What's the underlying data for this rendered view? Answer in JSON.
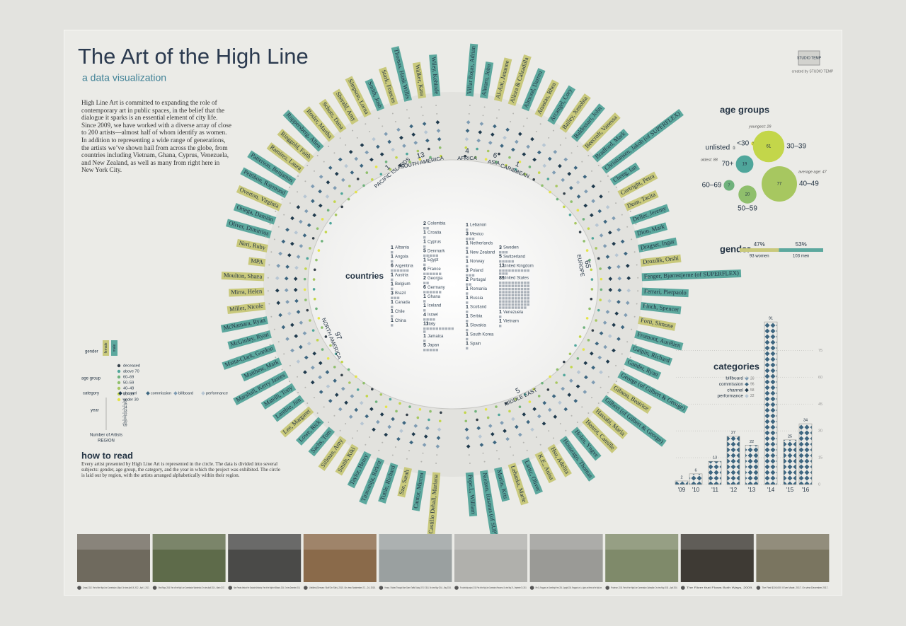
{
  "header": {
    "title": "The Art of the High Line",
    "subtitle": "a data visualization",
    "intro": "High Line Art is committed to expanding the role of contemporary art in public spaces, in the belief that the dialogue it sparks is an essential element of city life. Since 2009, we have worked with a diverse array of close to 200 artists—almost half of whom identify as women. In addition to representing a wide range of generations, the artists we’ve shown hail from across the globe, from countries including Vietnam, Ghana, Cyprus, Venezuela, and New Zealand, as well as many from right here in New York City."
  },
  "logo": {
    "name": "STUDIO TEMP",
    "credit": "created by STUDIO TEMP"
  },
  "legend": {
    "gender_label": "gender",
    "genders": [
      {
        "name": "female",
        "color": "#c9c97c"
      },
      {
        "name": "male",
        "color": "#5ca89e"
      }
    ],
    "age_label": "age group",
    "ages": [
      {
        "name": "deceased",
        "color": "#34404a"
      },
      {
        "name": "above 70",
        "color": "#4fa69b"
      },
      {
        "name": "60–69",
        "color": "#6fb27c"
      },
      {
        "name": "50–59",
        "color": "#8fbf6c"
      },
      {
        "name": "40–49",
        "color": "#a7c760"
      },
      {
        "name": "30–39",
        "color": "#c3d64a"
      },
      {
        "name": "under 30",
        "color": "#e4e44a"
      }
    ],
    "category_label": "category",
    "categories": [
      {
        "name": "channel",
        "color": "#1f3a4d"
      },
      {
        "name": "commission",
        "color": "#3d6680"
      },
      {
        "name": "billboard",
        "color": "#7f9cb3"
      },
      {
        "name": "performance",
        "color": "#b7c6d3"
      }
    ],
    "year_label": "year",
    "years": [
      "'16",
      "'15",
      "'14",
      "'13",
      "'12",
      "'11",
      "'10",
      "'09"
    ],
    "count_label": "Number of Artists",
    "region_label": "REGION"
  },
  "artists_right": [
    {
      "name": "Villar Rojas, Adrián",
      "gender": "male"
    },
    {
      "name": "Ahearn, John",
      "gender": "male"
    },
    {
      "name": "Al-Ani, Jananne",
      "gender": "female"
    },
    {
      "name": "Allora & Calzadilla",
      "gender": "female"
    },
    {
      "name": "Almond, Darren",
      "gender": "male"
    },
    {
      "name": "Anastas, Rhea",
      "gender": "female"
    },
    {
      "name": "Arcangel, Cory",
      "gender": "male"
    },
    {
      "name": "Bailey, Xenobia",
      "gender": "female"
    },
    {
      "name": "Baldessari, John",
      "gender": "male"
    },
    {
      "name": "Beecroft, Vanessa",
      "gender": "female"
    },
    {
      "name": "Bradford, Mark",
      "gender": "male"
    },
    {
      "name": "Christiansen, Jakob (of SUPERFLEX)",
      "gender": "male"
    },
    {
      "name": "Cheng, Ian",
      "gender": "male"
    },
    {
      "name": "Cortright, Petra",
      "gender": "female"
    },
    {
      "name": "Dean, Tacita",
      "gender": "female"
    },
    {
      "name": "Deller, Jeremy",
      "gender": "male"
    },
    {
      "name": "Dion, Mark",
      "gender": "male"
    },
    {
      "name": "Dragset, Ingar",
      "gender": "male"
    },
    {
      "name": "Drozdik, Orshi",
      "gender": "female"
    },
    {
      "name": "Fenger, Bjørnstjerne (of SUPERFLEX)",
      "gender": "male"
    },
    {
      "name": "Ferrari, Pierpaolo",
      "gender": "male"
    },
    {
      "name": "Finch, Spencer",
      "gender": "male"
    },
    {
      "name": "Forti, Simone",
      "gender": "female"
    },
    {
      "name": "Fromont, Aurélien",
      "gender": "male"
    },
    {
      "name": "Galpin, Richard",
      "gender": "male"
    },
    {
      "name": "Gander, Ryan",
      "gender": "male"
    },
    {
      "name": "George (of Gilbert & George)",
      "gender": "male"
    },
    {
      "name": "Gibson, Beatrice",
      "gender": "female"
    },
    {
      "name": "Gilbert (of Gilbert & George)",
      "gender": "male"
    },
    {
      "name": "Hassabi, Maria",
      "gender": "female"
    },
    {
      "name": "Henrot, Camille",
      "gender": "female"
    },
    {
      "name": "Holen, Yngve",
      "gender": "male"
    },
    {
      "name": "Houseago, Thomas",
      "gender": "male"
    },
    {
      "name": "Hsu, Adelita",
      "gender": "female"
    },
    {
      "name": "K.E., Anisa",
      "gender": "female"
    },
    {
      "name": "Lartic, Oliver",
      "gender": "male"
    },
    {
      "name": "Lehanka, Marie",
      "gender": "female"
    },
    {
      "name": "Martin, Kris",
      "gender": "male"
    },
    {
      "name": "Nielsen, Rasmus (of SUPERFLEX)",
      "gender": "male"
    },
    {
      "name": "Pope.L, William",
      "gender": "male"
    }
  ],
  "artists_left": [
    {
      "name": "Castillo Deball, Mariana",
      "gender": "female"
    },
    {
      "name": "Cantor, Mircea",
      "gender": "male"
    },
    {
      "name": "Sze, Sarah",
      "gender": "female"
    },
    {
      "name": "Tuttle, Richard",
      "gender": "male"
    },
    {
      "name": "Tiravanija, Rirkrit",
      "gender": "male"
    },
    {
      "name": "Taylor, Henry",
      "gender": "male"
    },
    {
      "name": "Smith, Kiki",
      "gender": "female"
    },
    {
      "name": "Sillman, Amy",
      "gender": "female"
    },
    {
      "name": "Sachs, Tom",
      "gender": "male"
    },
    {
      "name": "Lowe, Rick",
      "gender": "male"
    },
    {
      "name": "Lee, Margaret",
      "gender": "female"
    },
    {
      "name": "Lambie, Jim",
      "gender": "male"
    },
    {
      "name": "Matelli, Tony",
      "gender": "male"
    },
    {
      "name": "Marshall, Kerry James",
      "gender": "male"
    },
    {
      "name": "Matthew, Mark",
      "gender": "male"
    },
    {
      "name": "Matta-Clark, Gordon",
      "gender": "male"
    },
    {
      "name": "McGinley, Ryan",
      "gender": "male"
    },
    {
      "name": "McNamara, Ryan",
      "gender": "male"
    },
    {
      "name": "Miller, Nicole",
      "gender": "female"
    },
    {
      "name": "Mirra, Helen",
      "gender": "female"
    },
    {
      "name": "Moulton, Shana",
      "gender": "female"
    },
    {
      "name": "MPA",
      "gender": "female"
    },
    {
      "name": "Neri, Ruby",
      "gender": "female"
    },
    {
      "name": "Oliver, Dimitrios",
      "gender": "male"
    },
    {
      "name": "Ortega, Damián",
      "gender": "male"
    },
    {
      "name": "Overton, Virginia",
      "gender": "female"
    },
    {
      "name": "Pettibon, Raymond",
      "gender": "male"
    },
    {
      "name": "Patterson, Benjamin",
      "gender": "male"
    },
    {
      "name": "Ramirez, Laura",
      "gender": "female"
    },
    {
      "name": "Ringgold, Faith",
      "gender": "female"
    },
    {
      "name": "Ruppersberg, Allen",
      "gender": "male"
    },
    {
      "name": "Rosler, Martha",
      "gender": "female"
    },
    {
      "name": "Schutz, Dana",
      "gender": "female"
    },
    {
      "name": "Sherald, Amy",
      "gender": "female"
    },
    {
      "name": "Simpson, Lorna",
      "gender": "female"
    },
    {
      "name": "Smith, Josh",
      "gender": "male"
    },
    {
      "name": "Stark, Frances",
      "gender": "female"
    },
    {
      "name": "Thomas, Hank Willis",
      "gender": "male"
    },
    {
      "name": "Walker, Kara",
      "gender": "female"
    },
    {
      "name": "Wiley, Kehinde",
      "gender": "male"
    }
  ],
  "regions": [
    {
      "name": "PACIFIC ISLANDS",
      "count": 1
    },
    {
      "name": "SOUTH AMERICA",
      "count": 13
    },
    {
      "name": "AFRICA",
      "count": 4
    },
    {
      "name": "ASIA",
      "count": 6
    },
    {
      "name": "CARIBBEAN",
      "count": 1
    },
    {
      "name": "EUROPE",
      "count": 65
    },
    {
      "name": "MIDDLE EAST",
      "count": 5
    },
    {
      "name": "NORTH AMERICA",
      "count": 97
    }
  ],
  "countries": {
    "label": "countries",
    "columns": [
      [
        {
          "name": "Albania",
          "count": 1
        },
        {
          "name": "Angola",
          "count": 1
        },
        {
          "name": "Argentina",
          "count": 6
        },
        {
          "name": "Austria",
          "count": 1
        },
        {
          "name": "Belgium",
          "count": 1
        },
        {
          "name": "Brazil",
          "count": 3
        },
        {
          "name": "Canada",
          "count": 1
        },
        {
          "name": "Chile",
          "count": 1
        },
        {
          "name": "China",
          "count": 1
        }
      ],
      [
        {
          "name": "Colombia",
          "count": 2
        },
        {
          "name": "Croatia",
          "count": 1
        },
        {
          "name": "Cyprus",
          "count": 1
        },
        {
          "name": "Denmark",
          "count": 5
        },
        {
          "name": "Egypt",
          "count": 1
        },
        {
          "name": "France",
          "count": 6
        },
        {
          "name": "Georgia",
          "count": 2
        },
        {
          "name": "Germany",
          "count": 6
        },
        {
          "name": "Ghana",
          "count": 1
        },
        {
          "name": "Iceland",
          "count": 1
        },
        {
          "name": "Israel",
          "count": 4
        },
        {
          "name": "Italy",
          "count": 11
        },
        {
          "name": "Jamaica",
          "count": 1
        },
        {
          "name": "Japan",
          "count": 5
        }
      ],
      [
        {
          "name": "Lebanon",
          "count": 1
        },
        {
          "name": "Mexico",
          "count": 3
        },
        {
          "name": "Netherlands",
          "count": 1
        },
        {
          "name": "New Zealand",
          "count": 1
        },
        {
          "name": "Norway",
          "count": 1
        },
        {
          "name": "Poland",
          "count": 3
        },
        {
          "name": "Portugal",
          "count": 2
        },
        {
          "name": "Romania",
          "count": 1
        },
        {
          "name": "Russia",
          "count": 1
        },
        {
          "name": "Scotland",
          "count": 1
        },
        {
          "name": "Serbia",
          "count": 1
        },
        {
          "name": "Slovakia",
          "count": 1
        },
        {
          "name": "South Korea",
          "count": 1
        },
        {
          "name": "Spain",
          "count": 1
        }
      ],
      [
        {
          "name": "Sweden",
          "count": 3
        },
        {
          "name": "Switzerland",
          "count": 5
        },
        {
          "name": "United Kingdom",
          "count": 13
        },
        {
          "name": "United States",
          "count": 89
        },
        {
          "name": "Venezuela",
          "count": 1
        },
        {
          "name": "Vietnam",
          "count": 1
        }
      ]
    ]
  },
  "age_groups": {
    "title": "age groups",
    "groups": [
      {
        "label": "<30",
        "count": 1,
        "color": "#e4e44a"
      },
      {
        "label": "30–39",
        "count": 61,
        "color": "#c3d64a"
      },
      {
        "label": "unlisted",
        "count": 1,
        "color": "#d8d8d4"
      },
      {
        "label": "70+",
        "count": 19,
        "color": "#4fa69b"
      },
      {
        "label": "60–69",
        "count": 7,
        "color": "#6fb27c"
      },
      {
        "label": "50–59",
        "count": 20,
        "color": "#8fbf6c"
      },
      {
        "label": "40–49",
        "count": 77,
        "color": "#a7c760"
      }
    ],
    "notes": [
      "youngest: 29",
      "oldest: 88",
      "average age: 47"
    ]
  },
  "gender": {
    "title": "gender",
    "women": {
      "percent": 47,
      "percent_label": "47%",
      "count_label": "93 women"
    },
    "men": {
      "percent": 53,
      "percent_label": "53%",
      "count_label": "103 men"
    }
  },
  "categories": {
    "title": "categories",
    "legend": [
      {
        "name": "billboard",
        "count": 26
      },
      {
        "name": "commission",
        "count": 96
      },
      {
        "name": "channel",
        "count": 58
      },
      {
        "name": "performance",
        "count": 22
      }
    ],
    "years": [
      "'09",
      "'10",
      "'11",
      "'12",
      "'13",
      "'14",
      "'15",
      "'16"
    ],
    "values": [
      2,
      6,
      13,
      27,
      22,
      91,
      25,
      34
    ],
    "ylim": [
      0,
      95
    ],
    "yticks": [
      0,
      15,
      30,
      45,
      60,
      75
    ]
  },
  "how_to_read": {
    "title": "how to read",
    "text": "Every artist presented by High Line Art is represented in the circle. The data is divided into several subjects: gender, age group, the category, and the year in which the project was exhibited. The circle is laid out by region, with the artists arranged alphabetically within their region."
  },
  "photos": [
    {
      "caption": "Cerasi, 2012. Part of the High Line Commission Lilliput. On view April 19, 2012 – April 1, 2013."
    },
    {
      "caption": "Shed Rays, 2016. Part of the High Line Commission Wanderlust. On view April 2016 – March 2017."
    },
    {
      "caption": "Nine Female Artists of the Graduate Workshop. Part of the Highline Billboard, 2014. On view December 2014."
    },
    {
      "caption": "Untitled (Senses: Stuff On Site), 2015. On view September 22 – 24, 2015."
    },
    {
      "caption": "Honey, I Twisted Through More Damn Traffic Today, 1971 / 2014. On view May 2014 – May 2015."
    },
    {
      "caption": "Re-collectivity project, 2015. Part of the High Line Commission Panorama. On view May 29 – September 30, 2015."
    },
    {
      "caption": "Pier 34, Rongyuan Lee, Something's Here, 2014. Copyright 2014. Rongyuan Lee, Lu Ligate, and friends of the High Line."
    },
    {
      "caption": "Prudence, 2015. Part of the High Line Commission Caterpillar. On view May 2015 – April 2016."
    },
    {
      "caption": "The River that Flows Both Ways, 2009."
    },
    {
      "caption": "The First $100,000 I Ever Made, 2017. On view December 2017."
    }
  ]
}
